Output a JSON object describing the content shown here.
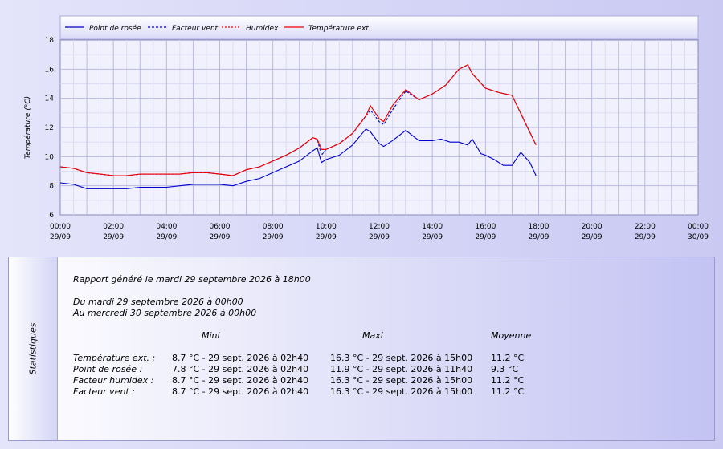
{
  "chart_data": {
    "type": "line",
    "ylabel": "Température (°C)",
    "ylim": [
      6,
      18
    ],
    "yticks": [
      "6",
      "8",
      "10",
      "12",
      "14",
      "16",
      "18"
    ],
    "xticks": [
      {
        "time": "00:00",
        "date": "29/09"
      },
      {
        "time": "02:00",
        "date": "29/09"
      },
      {
        "time": "04:00",
        "date": "29/09"
      },
      {
        "time": "06:00",
        "date": "29/09"
      },
      {
        "time": "08:00",
        "date": "29/09"
      },
      {
        "time": "10:00",
        "date": "29/09"
      },
      {
        "time": "12:00",
        "date": "29/09"
      },
      {
        "time": "14:00",
        "date": "29/09"
      },
      {
        "time": "16:00",
        "date": "29/09"
      },
      {
        "time": "18:00",
        "date": "29/09"
      },
      {
        "time": "20:00",
        "date": "29/09"
      },
      {
        "time": "22:00",
        "date": "29/09"
      },
      {
        "time": "00:00",
        "date": "30/09"
      }
    ],
    "grid": true,
    "legend_position": "top",
    "series": [
      {
        "name": "Point de rosée",
        "color": "#0000cc",
        "style": "solid",
        "x": [
          0,
          0.5,
          1,
          1.5,
          2,
          2.5,
          3,
          3.5,
          4,
          4.5,
          5,
          5.5,
          6,
          6.5,
          7,
          7.5,
          8,
          8.5,
          9,
          9.5,
          9.67,
          9.83,
          10,
          10.5,
          11,
          11.5,
          11.67,
          12,
          12.17,
          12.5,
          13,
          13.5,
          14,
          14.33,
          14.67,
          15,
          15.33,
          15.5,
          15.83,
          16,
          16.33,
          16.67,
          17,
          17.33,
          17.67,
          17.9
        ],
        "y": [
          8.2,
          8.1,
          7.8,
          7.8,
          7.8,
          7.8,
          7.9,
          7.9,
          7.9,
          8,
          8.1,
          8.1,
          8.1,
          8.0,
          8.3,
          8.5,
          8.9,
          9.3,
          9.7,
          10.4,
          10.6,
          9.6,
          9.8,
          10.1,
          10.8,
          11.9,
          11.7,
          10.9,
          10.7,
          11.1,
          11.8,
          11.1,
          11.1,
          11.2,
          11,
          11,
          10.8,
          11.2,
          10.2,
          10.1,
          9.8,
          9.4,
          9.4,
          10.3,
          9.6,
          8.7
        ]
      },
      {
        "name": "Facteur vent",
        "color": "#0000cc",
        "style": "dashed",
        "x": [
          0,
          0.5,
          1,
          1.5,
          2,
          2.5,
          3,
          3.5,
          4,
          4.5,
          5,
          5.5,
          6,
          6.5,
          7,
          7.5,
          8,
          8.5,
          9,
          9.5,
          9.67,
          9.83,
          10,
          10.5,
          11,
          11.5,
          11.67,
          12,
          12.17,
          12.5,
          13,
          13.5,
          14,
          14.5,
          15,
          15.33,
          15.5,
          16,
          16.5,
          17,
          17.5,
          17.9
        ],
        "y": [
          9.3,
          9.2,
          8.9,
          8.8,
          8.7,
          8.7,
          8.8,
          8.8,
          8.8,
          8.8,
          8.9,
          8.9,
          8.8,
          8.7,
          9.1,
          9.3,
          9.7,
          10.1,
          10.6,
          11.3,
          11.2,
          10.1,
          10.5,
          10.9,
          11.6,
          12.8,
          13.2,
          12.4,
          12.2,
          13.2,
          14.5,
          13.9,
          14.3,
          14.9,
          16,
          16.3,
          15.7,
          14.7,
          14.4,
          14.2,
          12.3,
          10.8
        ]
      },
      {
        "name": "Humidex",
        "color": "#ee0000",
        "style": "dotted",
        "x": [
          0,
          0.5,
          1,
          1.5,
          2,
          2.5,
          3,
          3.5,
          4,
          4.5,
          5,
          5.5,
          6,
          6.5,
          7,
          7.5,
          8,
          8.5,
          9,
          9.5,
          9.67,
          9.83,
          10,
          10.5,
          11,
          11.5,
          11.67,
          12,
          12.17,
          12.5,
          13,
          13.5,
          14,
          14.5,
          15,
          15.33,
          15.5,
          16,
          16.5,
          17,
          17.5,
          17.9
        ],
        "y": [
          9.3,
          9.2,
          8.9,
          8.8,
          8.7,
          8.7,
          8.8,
          8.8,
          8.8,
          8.8,
          8.9,
          8.9,
          8.8,
          8.7,
          9.1,
          9.3,
          9.7,
          10.1,
          10.6,
          11.3,
          11.2,
          10.5,
          10.5,
          10.9,
          11.6,
          12.8,
          13.5,
          12.6,
          12.4,
          13.5,
          14.6,
          13.9,
          14.3,
          14.9,
          16,
          16.3,
          15.7,
          14.7,
          14.4,
          14.2,
          12.3,
          10.8
        ]
      },
      {
        "name": "Température ext.",
        "color": "#ee0000",
        "style": "solid",
        "x": [
          0,
          0.5,
          1,
          1.5,
          2,
          2.5,
          3,
          3.5,
          4,
          4.5,
          5,
          5.5,
          6,
          6.5,
          7,
          7.5,
          8,
          8.5,
          9,
          9.5,
          9.67,
          9.83,
          10,
          10.5,
          11,
          11.5,
          11.67,
          12,
          12.17,
          12.5,
          13,
          13.5,
          14,
          14.5,
          15,
          15.33,
          15.5,
          16,
          16.5,
          17,
          17.5,
          17.9
        ],
        "y": [
          9.3,
          9.2,
          8.9,
          8.8,
          8.7,
          8.7,
          8.8,
          8.8,
          8.8,
          8.8,
          8.9,
          8.9,
          8.8,
          8.7,
          9.1,
          9.3,
          9.7,
          10.1,
          10.6,
          11.3,
          11.2,
          10.5,
          10.5,
          10.9,
          11.6,
          12.8,
          13.5,
          12.6,
          12.4,
          13.5,
          14.6,
          13.9,
          14.3,
          14.9,
          16,
          16.3,
          15.7,
          14.7,
          14.4,
          14.2,
          12.3,
          10.8
        ]
      }
    ]
  },
  "stats": {
    "side_label": "Statistiques",
    "generated": "Rapport généré le mardi 29 septembre 2026 à 18h00",
    "from": "Du mardi 29 septembre 2026 à 00h00",
    "to": "Au mercredi 30 septembre 2026 à 00h00",
    "col_mini": "Mini",
    "col_maxi": "Maxi",
    "col_moyenne": "Moyenne",
    "rows": [
      {
        "label": "Température ext. :",
        "mini": "8.7 °C - 29 sept. 2026 à 02h40",
        "maxi": "16.3 °C - 29 sept. 2026 à 15h00",
        "moyenne": "11.2 °C"
      },
      {
        "label": "Point de rosée :",
        "mini": "7.8 °C - 29 sept. 2026 à 02h40",
        "maxi": "11.9 °C - 29 sept. 2026 à 11h40",
        "moyenne": "9.3 °C"
      },
      {
        "label": "Facteur humidex :",
        "mini": "8.7 °C - 29 sept. 2026 à 02h40",
        "maxi": "16.3 °C - 29 sept. 2026 à 15h00",
        "moyenne": "11.2 °C"
      },
      {
        "label": "Facteur vent :",
        "mini": "8.7 °C - 29 sept. 2026 à 02h40",
        "maxi": "16.3 °C - 29 sept. 2026 à 15h00",
        "moyenne": "11.2 °C"
      }
    ]
  }
}
